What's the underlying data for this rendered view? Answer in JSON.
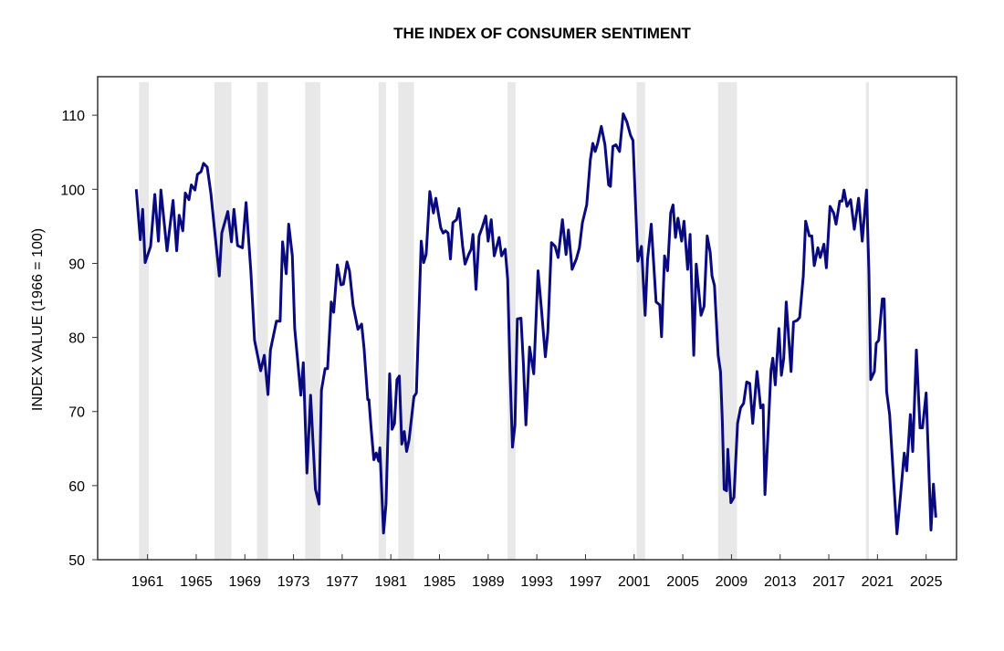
{
  "chart_data": {
    "type": "line",
    "title": "THE INDEX OF CONSUMER SENTIMENT",
    "xlabel": "",
    "ylabel": "INDEX VALUE (1966 = 100)",
    "xlim": [
      1956.9,
      2027.5
    ],
    "ylim": [
      50,
      115.2
    ],
    "grid": false,
    "legend": "none",
    "line_color": "#0a0a80",
    "shade_color": "#e8e8e8",
    "x_ticks": [
      1961,
      1965,
      1969,
      1973,
      1977,
      1981,
      1985,
      1989,
      1993,
      1997,
      2001,
      2005,
      2009,
      2013,
      2017,
      2021,
      2025
    ],
    "x_tick_labels": [
      "1961",
      "1965",
      "1969",
      "1973",
      "1977",
      "1981",
      "1985",
      "1989",
      "1993",
      "1997",
      "2001",
      "2005",
      "2009",
      "2013",
      "2017",
      "2021",
      "2025"
    ],
    "y_ticks": [
      50,
      60,
      70,
      80,
      90,
      100,
      110
    ],
    "y_tick_labels": [
      "50",
      "60",
      "70",
      "80",
      "90",
      "100",
      "110"
    ],
    "recessions": [
      [
        1960.3,
        1961.1
      ],
      [
        1966.5,
        1967.9
      ],
      [
        1970.0,
        1970.9
      ],
      [
        1973.95,
        1975.2
      ],
      [
        1980.0,
        1980.6
      ],
      [
        1981.6,
        1982.9
      ],
      [
        1990.6,
        1991.25
      ],
      [
        2001.2,
        2001.9
      ],
      [
        2007.9,
        2009.45
      ],
      [
        2020.05,
        2020.3
      ]
    ],
    "series": [
      {
        "name": "Index of Consumer Sentiment",
        "points": [
          [
            1960.07,
            100.0
          ],
          [
            1960.4,
            93.2
          ],
          [
            1960.6,
            97.3
          ],
          [
            1960.8,
            90.1
          ],
          [
            1961.25,
            92.3
          ],
          [
            1961.6,
            99.3
          ],
          [
            1961.9,
            93.0
          ],
          [
            1962.1,
            99.9
          ],
          [
            1962.6,
            91.7
          ],
          [
            1963.1,
            98.5
          ],
          [
            1963.4,
            91.7
          ],
          [
            1963.6,
            96.5
          ],
          [
            1963.9,
            94.4
          ],
          [
            1964.1,
            99.5
          ],
          [
            1964.4,
            98.6
          ],
          [
            1964.6,
            100.6
          ],
          [
            1964.9,
            99.9
          ],
          [
            1965.1,
            102.0
          ],
          [
            1965.4,
            102.4
          ],
          [
            1965.6,
            103.5
          ],
          [
            1965.9,
            103.0
          ],
          [
            1966.2,
            99.5
          ],
          [
            1966.5,
            94.6
          ],
          [
            1966.9,
            88.3
          ],
          [
            1967.1,
            94.1
          ],
          [
            1967.6,
            97.0
          ],
          [
            1967.9,
            92.9
          ],
          [
            1968.1,
            97.3
          ],
          [
            1968.4,
            92.4
          ],
          [
            1968.8,
            92.1
          ],
          [
            1969.1,
            98.2
          ],
          [
            1969.5,
            88.8
          ],
          [
            1969.8,
            79.6
          ],
          [
            1970.3,
            75.5
          ],
          [
            1970.6,
            77.6
          ],
          [
            1970.9,
            72.3
          ],
          [
            1971.1,
            78.3
          ],
          [
            1971.6,
            82.2
          ],
          [
            1971.9,
            82.2
          ],
          [
            1972.1,
            92.9
          ],
          [
            1972.4,
            88.6
          ],
          [
            1972.6,
            95.3
          ],
          [
            1972.9,
            91.0
          ],
          [
            1973.1,
            81.2
          ],
          [
            1973.6,
            72.2
          ],
          [
            1973.8,
            76.6
          ],
          [
            1974.1,
            61.7
          ],
          [
            1974.4,
            72.2
          ],
          [
            1974.8,
            59.5
          ],
          [
            1975.1,
            57.5
          ],
          [
            1975.3,
            72.9
          ],
          [
            1975.6,
            75.8
          ],
          [
            1975.8,
            75.8
          ],
          [
            1976.1,
            84.8
          ],
          [
            1976.3,
            83.4
          ],
          [
            1976.6,
            89.8
          ],
          [
            1976.9,
            87.1
          ],
          [
            1977.1,
            87.2
          ],
          [
            1977.4,
            90.2
          ],
          [
            1977.6,
            89.0
          ],
          [
            1977.9,
            84.3
          ],
          [
            1978.3,
            81.1
          ],
          [
            1978.6,
            81.8
          ],
          [
            1978.8,
            78.5
          ],
          [
            1979.1,
            71.6
          ],
          [
            1979.2,
            71.6
          ],
          [
            1979.4,
            67.3
          ],
          [
            1979.6,
            63.5
          ],
          [
            1979.8,
            64.4
          ],
          [
            1980.0,
            63.3
          ],
          [
            1980.1,
            65.1
          ],
          [
            1980.4,
            53.6
          ],
          [
            1980.6,
            57.5
          ],
          [
            1980.9,
            75.1
          ],
          [
            1981.1,
            67.6
          ],
          [
            1981.3,
            68.4
          ],
          [
            1981.5,
            74.3
          ],
          [
            1981.7,
            74.8
          ],
          [
            1981.9,
            65.6
          ],
          [
            1982.1,
            67.3
          ],
          [
            1982.3,
            64.6
          ],
          [
            1982.5,
            66.2
          ],
          [
            1982.9,
            72.0
          ],
          [
            1983.1,
            72.5
          ],
          [
            1983.5,
            93.0
          ],
          [
            1983.7,
            90.1
          ],
          [
            1983.9,
            91.2
          ],
          [
            1984.2,
            99.7
          ],
          [
            1984.5,
            96.8
          ],
          [
            1984.7,
            98.8
          ],
          [
            1985.1,
            94.8
          ],
          [
            1985.3,
            94.1
          ],
          [
            1985.5,
            94.4
          ],
          [
            1985.7,
            94.1
          ],
          [
            1985.9,
            90.6
          ],
          [
            1986.1,
            95.5
          ],
          [
            1986.4,
            95.9
          ],
          [
            1986.6,
            97.4
          ],
          [
            1986.9,
            92.3
          ],
          [
            1987.1,
            89.9
          ],
          [
            1987.4,
            91.2
          ],
          [
            1987.6,
            91.9
          ],
          [
            1987.75,
            93.9
          ],
          [
            1988.0,
            86.5
          ],
          [
            1988.25,
            93.7
          ],
          [
            1988.5,
            94.8
          ],
          [
            1988.8,
            96.4
          ],
          [
            1989.0,
            93.0
          ],
          [
            1989.25,
            95.9
          ],
          [
            1989.5,
            91.0
          ],
          [
            1989.9,
            93.5
          ],
          [
            1990.1,
            91.0
          ],
          [
            1990.4,
            91.9
          ],
          [
            1990.6,
            87.9
          ],
          [
            1990.8,
            75.4
          ],
          [
            1991.0,
            65.2
          ],
          [
            1991.2,
            68.2
          ],
          [
            1991.4,
            82.5
          ],
          [
            1991.7,
            82.6
          ],
          [
            1991.9,
            76.3
          ],
          [
            1992.1,
            68.2
          ],
          [
            1992.4,
            78.7
          ],
          [
            1992.75,
            75.1
          ],
          [
            1993.1,
            89.0
          ],
          [
            1993.4,
            83.4
          ],
          [
            1993.7,
            77.4
          ],
          [
            1993.9,
            80.7
          ],
          [
            1994.2,
            92.8
          ],
          [
            1994.5,
            92.3
          ],
          [
            1994.75,
            90.8
          ],
          [
            1995.1,
            95.9
          ],
          [
            1995.4,
            91.2
          ],
          [
            1995.6,
            94.5
          ],
          [
            1995.9,
            89.2
          ],
          [
            1996.25,
            90.6
          ],
          [
            1996.5,
            92.1
          ],
          [
            1996.75,
            95.5
          ],
          [
            1997.1,
            97.9
          ],
          [
            1997.4,
            104.0
          ],
          [
            1997.6,
            106.2
          ],
          [
            1997.8,
            105.1
          ],
          [
            1998.0,
            106.2
          ],
          [
            1998.3,
            108.5
          ],
          [
            1998.6,
            106.0
          ],
          [
            1998.9,
            100.6
          ],
          [
            1999.05,
            100.4
          ],
          [
            1999.25,
            105.8
          ],
          [
            1999.5,
            106.0
          ],
          [
            1999.8,
            105.1
          ],
          [
            2000.1,
            110.2
          ],
          [
            2000.4,
            109.1
          ],
          [
            2000.7,
            107.3
          ],
          [
            2000.9,
            106.6
          ],
          [
            2001.1,
            98.6
          ],
          [
            2001.3,
            90.3
          ],
          [
            2001.6,
            92.3
          ],
          [
            2001.9,
            83.0
          ],
          [
            2002.1,
            90.6
          ],
          [
            2002.4,
            95.3
          ],
          [
            2002.8,
            84.8
          ],
          [
            2003.1,
            84.4
          ],
          [
            2003.25,
            80.1
          ],
          [
            2003.5,
            91.0
          ],
          [
            2003.75,
            89.0
          ],
          [
            2004.0,
            96.8
          ],
          [
            2004.2,
            97.9
          ],
          [
            2004.4,
            93.5
          ],
          [
            2004.6,
            96.1
          ],
          [
            2004.9,
            93.0
          ],
          [
            2005.1,
            95.7
          ],
          [
            2005.4,
            89.2
          ],
          [
            2005.6,
            93.9
          ],
          [
            2005.9,
            77.6
          ],
          [
            2006.1,
            89.9
          ],
          [
            2006.5,
            83.0
          ],
          [
            2006.75,
            84.2
          ],
          [
            2007.0,
            93.7
          ],
          [
            2007.25,
            91.5
          ],
          [
            2007.4,
            88.3
          ],
          [
            2007.6,
            87.0
          ],
          [
            2007.9,
            77.6
          ],
          [
            2008.1,
            75.4
          ],
          [
            2008.25,
            68.7
          ],
          [
            2008.4,
            59.5
          ],
          [
            2008.6,
            59.3
          ],
          [
            2008.7,
            64.9
          ],
          [
            2008.95,
            57.7
          ],
          [
            2009.2,
            58.4
          ],
          [
            2009.5,
            68.4
          ],
          [
            2009.75,
            70.5
          ],
          [
            2010.0,
            71.1
          ],
          [
            2010.25,
            74.0
          ],
          [
            2010.5,
            73.8
          ],
          [
            2010.75,
            68.4
          ],
          [
            2011.1,
            75.4
          ],
          [
            2011.4,
            70.5
          ],
          [
            2011.6,
            70.9
          ],
          [
            2011.75,
            58.8
          ],
          [
            2012.0,
            66.9
          ],
          [
            2012.25,
            75.6
          ],
          [
            2012.4,
            77.2
          ],
          [
            2012.6,
            73.6
          ],
          [
            2012.9,
            81.2
          ],
          [
            2013.1,
            74.9
          ],
          [
            2013.3,
            77.2
          ],
          [
            2013.5,
            84.8
          ],
          [
            2013.9,
            75.4
          ],
          [
            2014.1,
            82.1
          ],
          [
            2014.4,
            82.3
          ],
          [
            2014.6,
            82.7
          ],
          [
            2014.9,
            88.3
          ],
          [
            2015.1,
            95.7
          ],
          [
            2015.4,
            93.7
          ],
          [
            2015.6,
            93.7
          ],
          [
            2015.8,
            89.7
          ],
          [
            2016.1,
            92.1
          ],
          [
            2016.3,
            90.8
          ],
          [
            2016.6,
            92.6
          ],
          [
            2016.8,
            89.4
          ],
          [
            2017.1,
            97.7
          ],
          [
            2017.4,
            96.8
          ],
          [
            2017.6,
            95.3
          ],
          [
            2017.9,
            98.4
          ],
          [
            2018.1,
            98.4
          ],
          [
            2018.25,
            99.9
          ],
          [
            2018.5,
            97.7
          ],
          [
            2018.8,
            98.6
          ],
          [
            2019.1,
            94.6
          ],
          [
            2019.45,
            98.8
          ],
          [
            2019.75,
            93.0
          ],
          [
            2020.1,
            99.9
          ],
          [
            2020.3,
            88.8
          ],
          [
            2020.45,
            74.3
          ],
          [
            2020.75,
            75.4
          ],
          [
            2020.9,
            79.2
          ],
          [
            2021.1,
            79.6
          ],
          [
            2021.4,
            85.2
          ],
          [
            2021.55,
            85.2
          ],
          [
            2021.75,
            72.7
          ],
          [
            2022.0,
            69.6
          ],
          [
            2022.25,
            62.9
          ],
          [
            2022.6,
            53.5
          ],
          [
            2022.9,
            58.8
          ],
          [
            2023.2,
            64.4
          ],
          [
            2023.4,
            62.0
          ],
          [
            2023.7,
            69.6
          ],
          [
            2023.9,
            64.6
          ],
          [
            2024.2,
            78.3
          ],
          [
            2024.5,
            67.8
          ],
          [
            2024.7,
            67.8
          ],
          [
            2025.0,
            72.5
          ],
          [
            2025.4,
            54.0
          ],
          [
            2025.6,
            60.2
          ],
          [
            2025.8,
            55.7
          ]
        ]
      }
    ]
  }
}
